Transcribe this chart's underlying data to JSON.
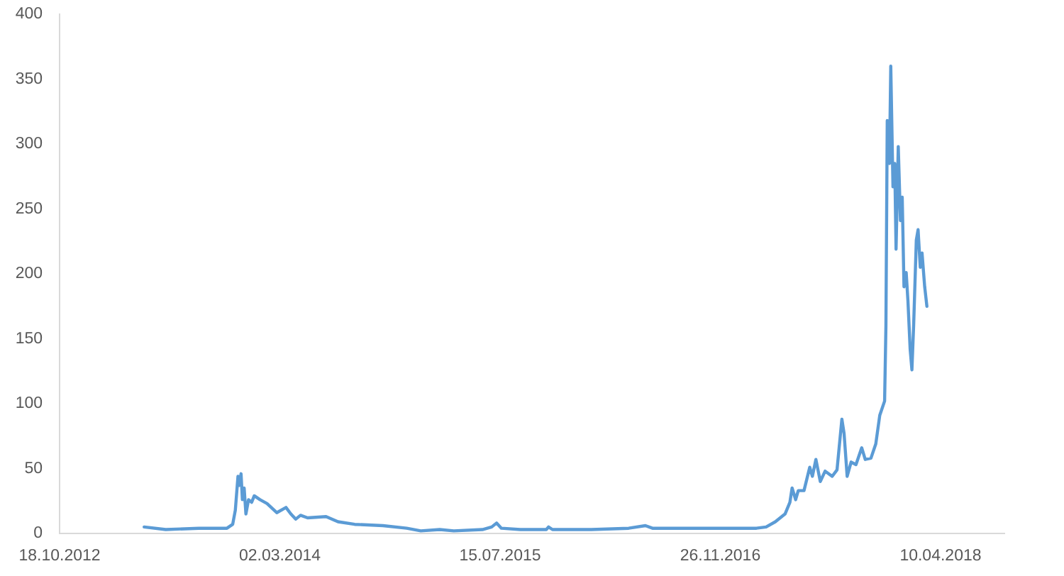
{
  "chart_data": {
    "type": "line",
    "x": [
      "2013-04-28",
      "2013-06-16",
      "2013-08-30",
      "2013-11-02",
      "2013-11-15",
      "2013-11-21",
      "2013-11-27",
      "2013-11-30",
      "2013-12-04",
      "2013-12-07",
      "2013-12-11",
      "2013-12-15",
      "2013-12-21",
      "2013-12-28",
      "2014-01-03",
      "2014-01-16",
      "2014-02-01",
      "2014-02-23",
      "2014-03-16",
      "2014-03-27",
      "2014-04-07",
      "2014-04-18",
      "2014-05-04",
      "2014-06-15",
      "2014-07-12",
      "2014-08-19",
      "2014-10-22",
      "2014-12-15",
      "2015-01-16",
      "2015-02-28",
      "2015-04-01",
      "2015-06-05",
      "2015-06-26",
      "2015-07-07",
      "2015-07-18",
      "2015-08-30",
      "2015-10-28",
      "2015-11-02",
      "2015-11-11",
      "2016-02-07",
      "2016-05-02",
      "2016-06-09",
      "2016-06-25",
      "2016-09-19",
      "2016-12-25",
      "2017-02-16",
      "2017-03-10",
      "2017-03-31",
      "2017-04-22",
      "2017-05-03",
      "2017-05-08",
      "2017-05-16",
      "2017-05-22",
      "2017-06-04",
      "2017-06-17",
      "2017-06-23",
      "2017-07-01",
      "2017-07-11",
      "2017-07-22",
      "2017-08-07",
      "2017-08-18",
      "2017-08-29",
      "2017-09-03",
      "2017-09-10",
      "2017-09-19",
      "2017-09-30",
      "2017-10-13",
      "2017-10-21",
      "2017-11-03",
      "2017-11-14",
      "2017-11-23",
      "2017-12-04",
      "2017-12-07",
      "2017-12-10",
      "2017-12-15",
      "2017-12-18",
      "2017-12-23",
      "2017-12-27",
      "2017-12-30",
      "2018-01-04",
      "2018-01-09",
      "2018-01-13",
      "2018-01-17",
      "2018-01-22",
      "2018-01-26",
      "2018-01-31",
      "2018-02-04",
      "2018-02-08",
      "2018-02-14",
      "2018-02-18",
      "2018-02-23",
      "2018-02-27",
      "2018-03-05",
      "2018-03-10"
    ],
    "values": [
      5,
      3,
      4,
      4,
      7,
      18,
      44,
      37,
      46,
      26,
      35,
      15,
      26,
      24,
      29,
      26,
      23,
      16,
      20,
      15,
      11,
      14,
      12,
      13,
      9,
      7,
      6,
      4,
      2,
      3,
      2,
      3,
      5,
      8,
      4,
      3,
      3,
      5,
      3,
      3,
      4,
      6,
      4,
      4,
      4,
      4,
      5,
      9,
      15,
      24,
      35,
      26,
      33,
      33,
      51,
      44,
      57,
      40,
      48,
      44,
      49,
      88,
      77,
      44,
      55,
      53,
      66,
      57,
      58,
      69,
      91,
      102,
      160,
      318,
      285,
      360,
      267,
      285,
      219,
      298,
      241,
      259,
      190,
      201,
      179,
      142,
      126,
      161,
      226,
      234,
      205,
      216,
      190,
      175
    ],
    "color": "#5b9bd5",
    "xlim": [
      "2012-10-18",
      "2018-09-02"
    ],
    "xticks": [
      {
        "value": "2012-10-18",
        "label": "18.10.2012"
      },
      {
        "value": "2014-03-02",
        "label": "02.03.2014"
      },
      {
        "value": "2015-07-15",
        "label": "15.07.2015"
      },
      {
        "value": "2016-11-26",
        "label": "26.11.2016"
      },
      {
        "value": "2018-04-10",
        "label": "10.04.2018"
      }
    ],
    "ylim": [
      0,
      400
    ],
    "yticks": [
      0,
      50,
      100,
      150,
      200,
      250,
      300,
      350,
      400
    ],
    "grid": false,
    "marker": "none",
    "line_style": "solid"
  }
}
